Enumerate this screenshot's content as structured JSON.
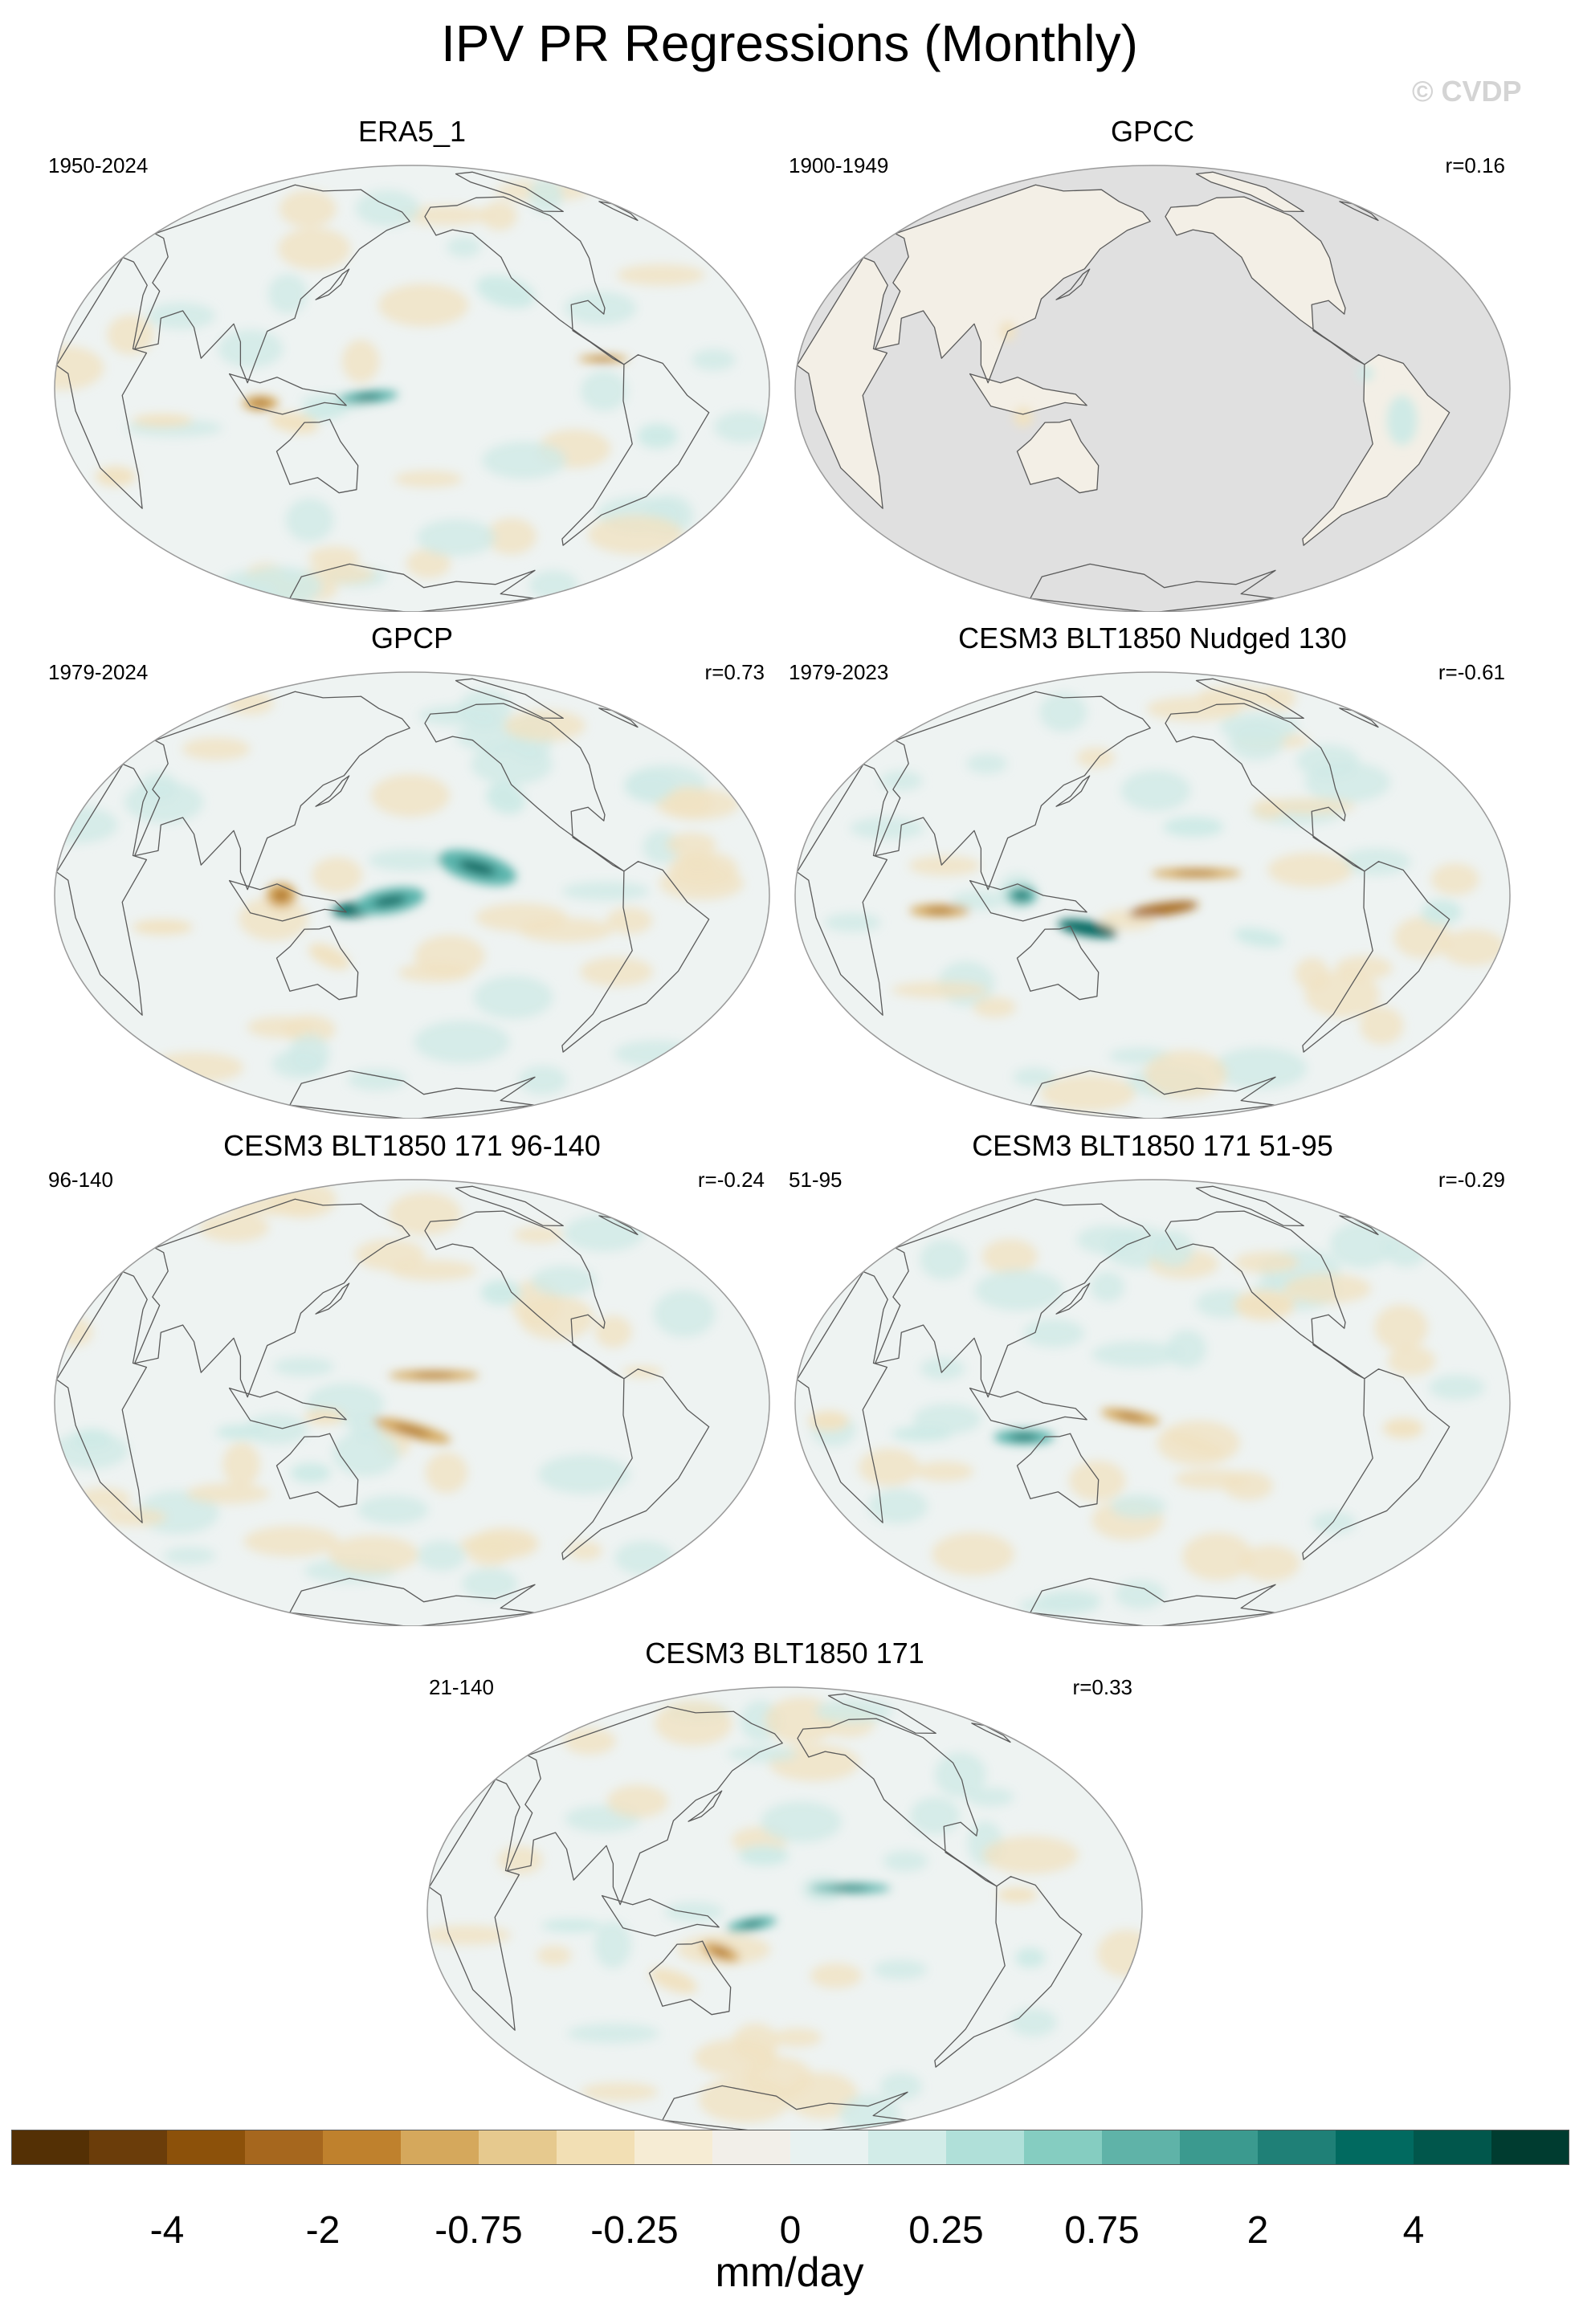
{
  "title": "IPV PR Regressions (Monthly)",
  "watermark": "© CVDP",
  "panels": [
    {
      "name": "ERA5_1",
      "period": "1950-2024",
      "corr": "",
      "variant": 0,
      "land_masked": false
    },
    {
      "name": "GPCC",
      "period": "1900-1949",
      "corr": "r=0.16",
      "variant": 1,
      "land_masked": true
    },
    {
      "name": "GPCP",
      "period": "1979-2024",
      "corr": "r=0.73",
      "variant": 2,
      "land_masked": false
    },
    {
      "name": "CESM3 BLT1850 Nudged 130",
      "period": "1979-2023",
      "corr": "r=-0.61",
      "variant": 3,
      "land_masked": false
    },
    {
      "name": "CESM3 BLT1850 171 96-140",
      "period": "96-140",
      "corr": "r=-0.24",
      "variant": 4,
      "land_masked": false
    },
    {
      "name": "CESM3 BLT1850 171 51-95",
      "period": "51-95",
      "corr": "r=-0.29",
      "variant": 5,
      "land_masked": false
    },
    {
      "name": "CESM3 BLT1850 171",
      "period": "21-140",
      "corr": "r=0.33",
      "variant": 6,
      "land_masked": false
    }
  ],
  "colorbar": {
    "units": "mm/day",
    "labels": [
      "-4",
      "-2",
      "-0.75",
      "-0.25",
      "0",
      "0.25",
      "0.75",
      "2",
      "4"
    ],
    "colors": [
      "#543005",
      "#6b3d0a",
      "#8c510a",
      "#a6671e",
      "#bf812d",
      "#d5a85c",
      "#e6c98e",
      "#f2dfb4",
      "#f6ecd4",
      "#f2efe9",
      "#e8f2f1",
      "#d2ece8",
      "#b0e0d9",
      "#85cdc1",
      "#5fb3a8",
      "#3b9a8f",
      "#1f8077",
      "#016a60",
      "#01574c",
      "#003c30"
    ]
  },
  "map_colors": {
    "ocean_base": "#eef3f2",
    "outline": "#9a9a9a",
    "coast": "#5a5a5a",
    "mask": "#e0e0e0",
    "dry_strong": "#a6671e",
    "dry_mid": "#d5a85c",
    "dry_weak": "#f0e2c2",
    "wet_strong": "#01665e",
    "wet_mid": "#5ab4ac",
    "wet_weak": "#cfeae6"
  }
}
